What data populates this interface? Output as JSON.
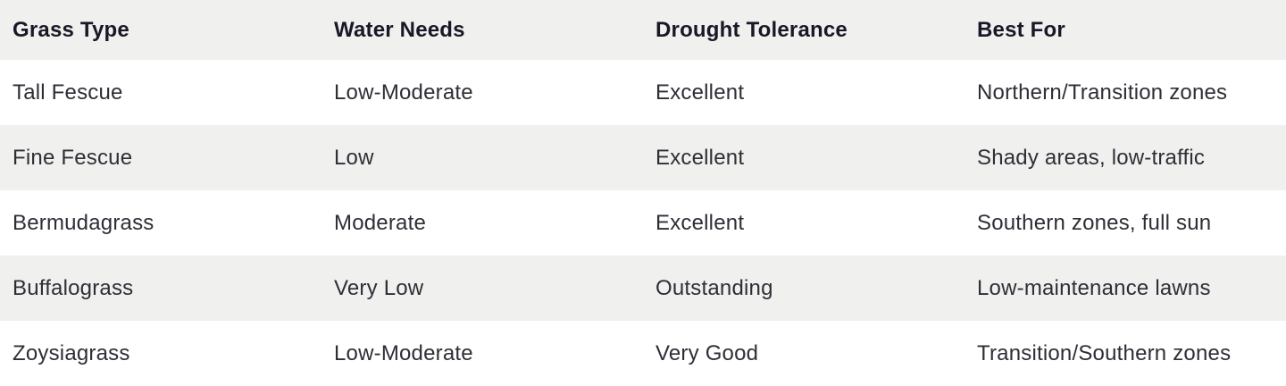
{
  "chart_data": {
    "type": "table",
    "columns": [
      "Grass Type",
      "Water Needs",
      "Drought Tolerance",
      "Best For"
    ],
    "rows": [
      [
        "Tall Fescue",
        "Low-Moderate",
        "Excellent",
        "Northern/Transition zones"
      ],
      [
        "Fine Fescue",
        "Low",
        "Excellent",
        "Shady areas, low-traffic"
      ],
      [
        "Bermudagrass",
        "Moderate",
        "Excellent",
        "Southern zones, full sun"
      ],
      [
        "Buffalograss",
        "Very Low",
        "Outstanding",
        "Low-maintenance lawns"
      ],
      [
        "Zoysiagrass",
        "Low-Moderate",
        "Very Good",
        "Transition/Southern zones"
      ]
    ],
    "layout_hints": {
      "header_shaded": true,
      "zebra_striping": "even data rows shaded",
      "grid": "off",
      "column_alignment": [
        "left",
        "left",
        "left",
        "left"
      ]
    }
  },
  "colors": {
    "header_bg": "#f0f0ef",
    "row_alt_bg": "#f0f0ef",
    "row_bg": "#ffffff",
    "header_text": "#181826",
    "body_text": "#2e2e36"
  }
}
